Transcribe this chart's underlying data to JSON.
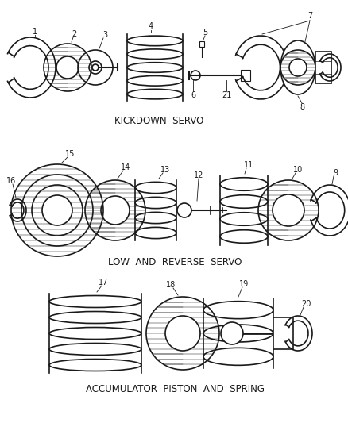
{
  "background_color": "#ffffff",
  "line_color": "#1a1a1a",
  "text_color": "#1a1a1a",
  "section1_label": "KICKDOWN  SERVO",
  "section2_label": "LOW  AND  REVERSE  SERVO",
  "section3_label": "ACCUMULATOR  PISTON  AND  SPRING",
  "figsize": [
    4.38,
    5.33
  ],
  "dpi": 100,
  "xlim": [
    0,
    438
  ],
  "ylim": [
    0,
    533
  ]
}
